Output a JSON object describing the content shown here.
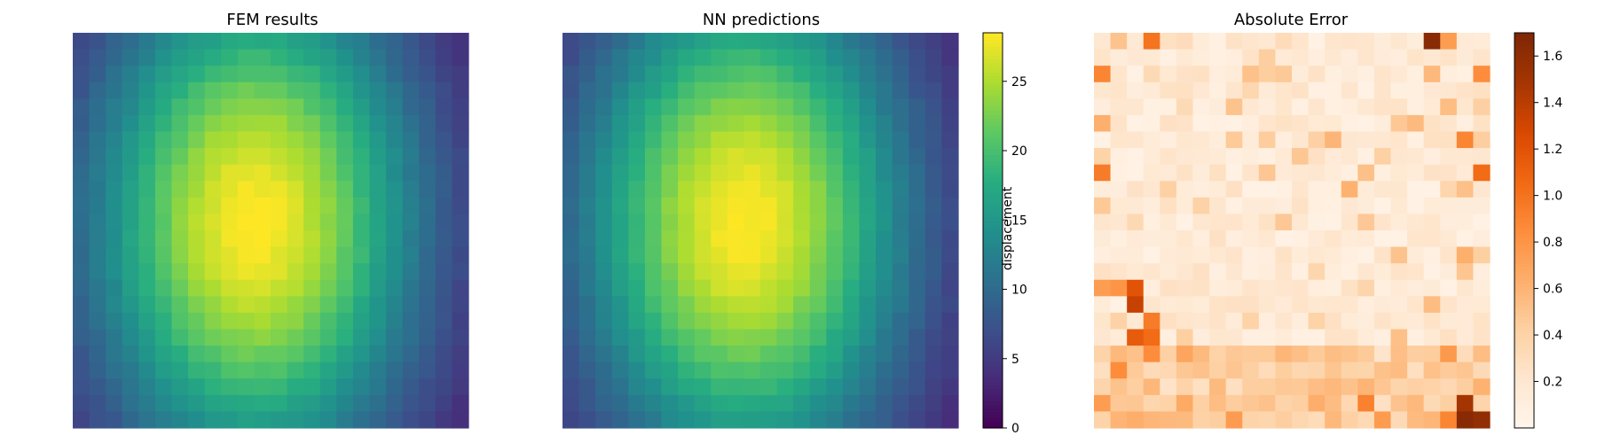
{
  "chart_data": [
    {
      "type": "heatmap",
      "title": "FEM results",
      "grid": [
        24,
        24
      ],
      "colormap": "viridis",
      "value_range": [
        0,
        28.5
      ],
      "field": {
        "peak": 28.5,
        "center": [
          0.46,
          0.48
        ],
        "sigma_x": 0.3,
        "sigma_y": 0.46,
        "base": 0.5
      }
    },
    {
      "type": "heatmap",
      "title": "NN predictions",
      "grid": [
        24,
        24
      ],
      "colormap": "viridis",
      "value_range": [
        0,
        28.5
      ],
      "field": {
        "peak": 28.5,
        "center": [
          0.46,
          0.48
        ],
        "sigma_x": 0.3,
        "sigma_y": 0.46,
        "base": 0.5
      },
      "colorbar": {
        "label": "displacement",
        "ticks": [
          0,
          5,
          10,
          15,
          20,
          25
        ]
      }
    },
    {
      "type": "heatmap",
      "title": "Absolute Error",
      "grid": [
        24,
        24
      ],
      "colormap": "oranges",
      "value_range": [
        0,
        1.7
      ],
      "colorbar": {
        "label": "",
        "ticks": [
          0.2,
          0.4,
          0.6,
          0.8,
          1.0,
          1.2,
          1.4,
          1.6
        ]
      },
      "hotspots": [
        {
          "row": 0,
          "col": 3,
          "value": 1.0
        },
        {
          "row": 0,
          "col": 20,
          "value": 1.65
        },
        {
          "row": 0,
          "col": 21,
          "value": 0.75
        },
        {
          "row": 2,
          "col": 0,
          "value": 0.9
        },
        {
          "row": 2,
          "col": 23,
          "value": 0.85
        },
        {
          "row": 6,
          "col": 22,
          "value": 0.9
        },
        {
          "row": 8,
          "col": 0,
          "value": 0.95
        },
        {
          "row": 8,
          "col": 23,
          "value": 1.05
        },
        {
          "row": 15,
          "col": 0,
          "value": 0.75
        },
        {
          "row": 15,
          "col": 1,
          "value": 0.8
        },
        {
          "row": 15,
          "col": 2,
          "value": 1.2
        },
        {
          "row": 16,
          "col": 2,
          "value": 1.35
        },
        {
          "row": 17,
          "col": 3,
          "value": 0.95
        },
        {
          "row": 18,
          "col": 2,
          "value": 1.15
        },
        {
          "row": 18,
          "col": 3,
          "value": 1.05
        },
        {
          "row": 19,
          "col": 3,
          "value": 0.85
        },
        {
          "row": 22,
          "col": 22,
          "value": 1.5
        },
        {
          "row": 23,
          "col": 22,
          "value": 1.65
        },
        {
          "row": 23,
          "col": 23,
          "value": 1.6
        },
        {
          "row": 23,
          "col": 21,
          "value": 0.9
        }
      ]
    }
  ]
}
